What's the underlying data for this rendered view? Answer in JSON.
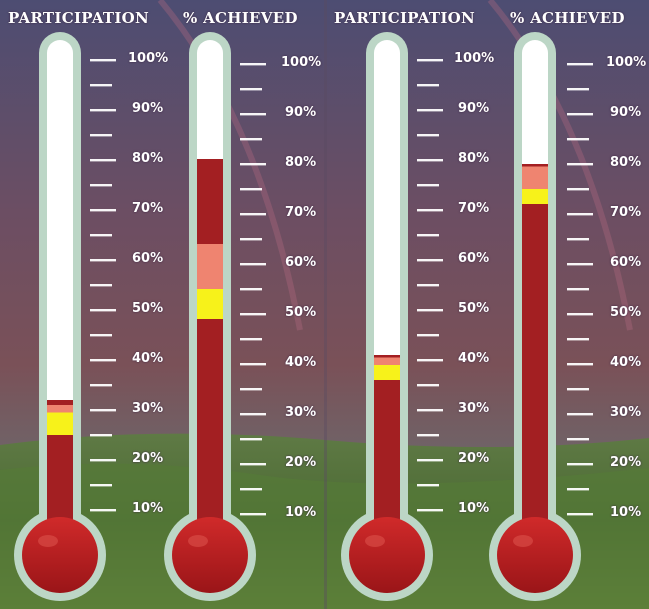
{
  "panels": [
    {
      "title": "PARTICIPATION",
      "value": 32,
      "yellow_bottom": 25,
      "yellow_top": 29.5,
      "salmon_top": 31
    },
    {
      "title": "% ACHIEVED",
      "value": 81,
      "yellow_bottom": 49,
      "yellow_top": 55,
      "salmon_top": 64
    },
    {
      "title": "PARTICIPATION",
      "value": 41,
      "yellow_bottom": 36,
      "yellow_top": 39,
      "salmon_top": 40.5
    },
    {
      "title": "% ACHIEVED",
      "value": 80,
      "yellow_bottom": 72,
      "yellow_top": 75,
      "salmon_top": 79.5
    }
  ],
  "tick_labels": [
    "10%",
    "20%",
    "30%",
    "40%",
    "50%",
    "60%",
    "70%",
    "80%",
    "90%",
    "100%"
  ],
  "colors": {
    "fill": "#a31f22",
    "yellow": "#f7f21a",
    "salmon": "#ef8470",
    "tube": "#ffffff",
    "tube_border": "#bcd6c6",
    "bulb": "#b71f22"
  },
  "chart_data": [
    {
      "type": "bar",
      "title": "PARTICIPATION",
      "values": [
        32
      ],
      "ylim": [
        0,
        100
      ],
      "tick_labels": [
        "10%",
        "20%",
        "30%",
        "40%",
        "50%",
        "60%",
        "70%",
        "80%",
        "90%",
        "100%"
      ]
    },
    {
      "type": "bar",
      "title": "% ACHIEVED",
      "values": [
        81
      ],
      "ylim": [
        0,
        100
      ],
      "tick_labels": [
        "10%",
        "20%",
        "30%",
        "40%",
        "50%",
        "60%",
        "70%",
        "80%",
        "90%",
        "100%"
      ]
    },
    {
      "type": "bar",
      "title": "PARTICIPATION",
      "values": [
        41
      ],
      "ylim": [
        0,
        100
      ],
      "tick_labels": [
        "10%",
        "20%",
        "30%",
        "40%",
        "50%",
        "60%",
        "70%",
        "80%",
        "90%",
        "100%"
      ]
    },
    {
      "type": "bar",
      "title": "% ACHIEVED",
      "values": [
        80
      ],
      "ylim": [
        0,
        100
      ],
      "tick_labels": [
        "10%",
        "20%",
        "30%",
        "40%",
        "50%",
        "60%",
        "70%",
        "80%",
        "90%",
        "100%"
      ]
    }
  ]
}
